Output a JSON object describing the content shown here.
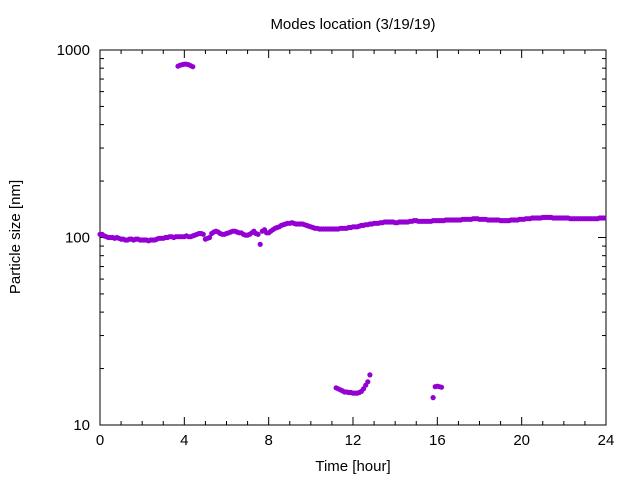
{
  "chart_data": {
    "type": "scatter",
    "title": "Modes location (3/19/19)",
    "xlabel": "Time [hour]",
    "ylabel": "Particle size [nm]",
    "xlim": [
      0,
      24
    ],
    "ylim": [
      10,
      1000
    ],
    "yscale": "log",
    "x_ticks": [
      0,
      4,
      8,
      12,
      16,
      20,
      24
    ],
    "x_tick_labels": [
      "0",
      "4",
      "8",
      "12",
      "16",
      "20",
      "24"
    ],
    "y_ticks": [
      10,
      100,
      1000
    ],
    "y_tick_labels": [
      "10",
      "100",
      "1000"
    ],
    "grid": false,
    "legend": "none",
    "marker_color": "#9400d3",
    "series": [
      {
        "mode": "main",
        "x": [
          0.0,
          0.1,
          0.2,
          0.3,
          0.4,
          0.5,
          0.6,
          0.7,
          0.8,
          0.9,
          1.0,
          1.1,
          1.2,
          1.3,
          1.4,
          1.5,
          1.6,
          1.7,
          1.8,
          1.9,
          2.0,
          2.1,
          2.2,
          2.3,
          2.4,
          2.5,
          2.6,
          2.7,
          2.8,
          2.9,
          3.0,
          3.1,
          3.2,
          3.3,
          3.4,
          3.5,
          3.6,
          3.7,
          3.8,
          3.9,
          4.0,
          4.1,
          4.2,
          4.3,
          4.4,
          4.5,
          4.6,
          4.7,
          4.8,
          4.9,
          5.0,
          5.1,
          5.2,
          5.3,
          5.4,
          5.5,
          5.6,
          5.7,
          5.8,
          5.9,
          6.0,
          6.1,
          6.2,
          6.3,
          6.4,
          6.5,
          6.6,
          6.7,
          6.8,
          6.9,
          7.0,
          7.1,
          7.2,
          7.3,
          7.4,
          7.5,
          7.6,
          7.7,
          7.8,
          7.9,
          8.0,
          8.1,
          8.2,
          8.3,
          8.4,
          8.5,
          8.6,
          8.7,
          8.8,
          8.9,
          9.0,
          9.1,
          9.2,
          9.3,
          9.4,
          9.5,
          9.6,
          9.7,
          9.8,
          9.9,
          10.0,
          10.1,
          10.2,
          10.3,
          10.4,
          10.5,
          10.6,
          10.7,
          10.8,
          10.9,
          11.0,
          11.1,
          11.2,
          11.3,
          11.4,
          11.5,
          11.6,
          11.7,
          11.8,
          11.9,
          12.0,
          12.1,
          12.2,
          12.3,
          12.4,
          12.5,
          12.6,
          12.7,
          12.8,
          12.9,
          13.0,
          13.1,
          13.2,
          13.3,
          13.4,
          13.5,
          13.6,
          13.7,
          13.8,
          13.9,
          14.0,
          14.1,
          14.2,
          14.3,
          14.4,
          14.5,
          14.6,
          14.7,
          14.8,
          14.9,
          15.0,
          15.1,
          15.2,
          15.3,
          15.4,
          15.5,
          15.6,
          15.7,
          15.8,
          15.9,
          16.0,
          16.1,
          16.2,
          16.3,
          16.4,
          16.5,
          16.6,
          16.7,
          16.8,
          16.9,
          17.0,
          17.1,
          17.2,
          17.3,
          17.4,
          17.5,
          17.6,
          17.7,
          17.8,
          17.9,
          18.0,
          18.1,
          18.2,
          18.3,
          18.4,
          18.5,
          18.6,
          18.7,
          18.8,
          18.9,
          19.0,
          19.1,
          19.2,
          19.3,
          19.4,
          19.5,
          19.6,
          19.7,
          19.8,
          19.9,
          20.0,
          20.1,
          20.2,
          20.3,
          20.4,
          20.5,
          20.6,
          20.7,
          20.8,
          20.9,
          21.0,
          21.1,
          21.2,
          21.3,
          21.4,
          21.5,
          21.6,
          21.7,
          21.8,
          21.9,
          22.0,
          22.1,
          22.2,
          22.3,
          22.4,
          22.5,
          22.6,
          22.7,
          22.8,
          22.9,
          23.0,
          23.1,
          23.2,
          23.3,
          23.4,
          23.5,
          23.6,
          23.7,
          23.8,
          23.9
        ],
        "y": [
          104,
          104,
          102,
          101,
          100,
          100,
          100,
          99,
          100,
          99,
          98,
          98,
          97,
          97,
          98,
          98,
          97,
          98,
          98,
          97,
          97,
          97,
          97,
          96,
          97,
          97,
          97,
          98,
          99,
          99,
          99,
          100,
          100,
          101,
          101,
          100,
          101,
          101,
          101,
          101,
          101,
          102,
          101,
          101,
          102,
          103,
          104,
          105,
          105,
          104,
          98,
          99,
          100,
          105,
          107,
          108,
          107,
          105,
          104,
          104,
          105,
          106,
          107,
          108,
          108,
          107,
          106,
          106,
          104,
          103,
          103,
          104,
          106,
          108,
          105,
          104,
          92,
          108,
          110,
          106,
          106,
          108,
          110,
          112,
          113,
          114,
          116,
          117,
          118,
          119,
          119,
          120,
          119,
          118,
          118,
          118,
          118,
          117,
          116,
          115,
          114,
          113,
          112,
          112,
          111,
          111,
          111,
          111,
          111,
          111,
          111,
          111,
          111,
          111,
          112,
          112,
          112,
          112,
          113,
          113,
          114,
          114,
          114,
          115,
          116,
          116,
          117,
          117,
          118,
          118,
          119,
          119,
          119,
          120,
          120,
          121,
          121,
          121,
          121,
          121,
          120,
          120,
          121,
          121,
          121,
          121,
          121,
          122,
          122,
          123,
          123,
          122,
          122,
          122,
          122,
          122,
          122,
          122,
          123,
          123,
          123,
          123,
          123,
          123,
          124,
          124,
          124,
          124,
          124,
          124,
          124,
          124,
          125,
          125,
          125,
          125,
          125,
          126,
          126,
          126,
          125,
          125,
          125,
          125,
          124,
          124,
          124,
          124,
          124,
          124,
          123,
          123,
          123,
          123,
          123,
          124,
          124,
          124,
          124,
          125,
          125,
          125,
          126,
          126,
          126,
          127,
          127,
          127,
          127,
          127,
          128,
          128,
          128,
          128,
          128,
          127,
          127,
          127,
          127,
          127,
          127,
          127,
          127,
          126,
          126,
          126,
          126,
          126,
          126,
          126,
          126,
          126,
          126,
          126,
          126,
          126,
          126,
          127,
          127,
          127
        ]
      },
      {
        "mode": "large",
        "x": [
          3.7,
          3.8,
          3.9,
          4.0,
          4.1,
          4.2,
          4.3,
          4.4
        ],
        "y": [
          820,
          830,
          835,
          840,
          840,
          835,
          825,
          815
        ]
      },
      {
        "mode": "small",
        "x": [
          11.2,
          11.3,
          11.4,
          11.5,
          11.6,
          11.7,
          11.8,
          11.9,
          12.0,
          12.1,
          12.2,
          12.3,
          12.4,
          12.5,
          12.6,
          12.7,
          12.8,
          15.8,
          15.9,
          16.0,
          16.1,
          16.2
        ],
        "y": [
          15.8,
          15.6,
          15.4,
          15.2,
          15.0,
          15.0,
          14.9,
          14.9,
          14.8,
          14.8,
          14.8,
          14.9,
          15.1,
          15.6,
          16.3,
          17.0,
          18.5,
          14.0,
          16.0,
          16.1,
          16.0,
          15.9
        ]
      }
    ]
  }
}
